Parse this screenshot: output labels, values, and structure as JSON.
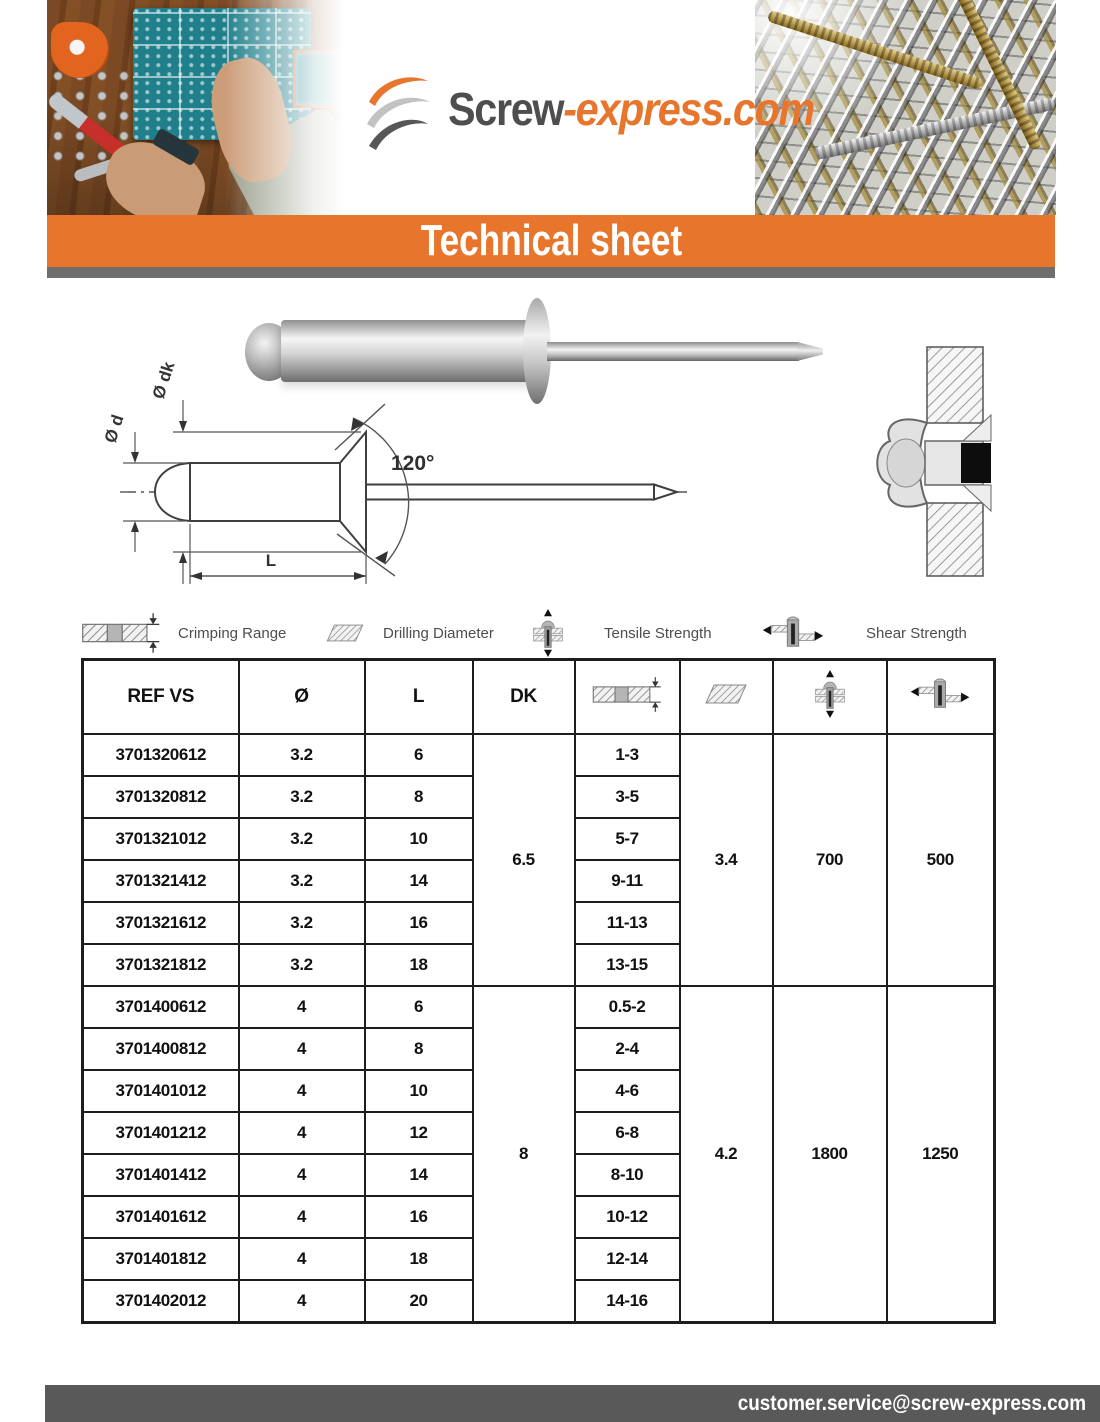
{
  "brand": {
    "name_dark": "Screw",
    "name_accent": "-express.com"
  },
  "banner": {
    "title": "Technical sheet"
  },
  "product_diagram": {
    "body_diameter_label": "Ø d",
    "head_diameter_label": "Ø dk",
    "angle_label": "120°",
    "length_label": "L"
  },
  "legend": {
    "items": [
      {
        "icon": "crimping-range-icon",
        "label": "Crimping Range"
      },
      {
        "icon": "drilling-diameter-icon",
        "label": "Drilling Diameter"
      },
      {
        "icon": "tensile-strength-icon",
        "label": "Tensile Strength"
      },
      {
        "icon": "shear-strength-icon",
        "label": "Shear Strength"
      }
    ]
  },
  "table": {
    "text_headers": [
      "REF VS",
      "Ø",
      "L",
      "DK"
    ],
    "icon_headers": [
      "crimping-range-icon",
      "drilling-diameter-icon",
      "tensile-strength-icon",
      "shear-strength-icon"
    ],
    "groups": [
      {
        "dk": "6.5",
        "drilling_diameter": "3.4",
        "tensile_strength": "700",
        "shear_strength": "500",
        "rows": [
          {
            "ref": "3701320612",
            "dia": "3.2",
            "length": "6",
            "crimping_range": "1-3"
          },
          {
            "ref": "3701320812",
            "dia": "3.2",
            "length": "8",
            "crimping_range": "3-5"
          },
          {
            "ref": "3701321012",
            "dia": "3.2",
            "length": "10",
            "crimping_range": "5-7"
          },
          {
            "ref": "3701321412",
            "dia": "3.2",
            "length": "14",
            "crimping_range": "9-11"
          },
          {
            "ref": "3701321612",
            "dia": "3.2",
            "length": "16",
            "crimping_range": "11-13"
          },
          {
            "ref": "3701321812",
            "dia": "3.2",
            "length": "18",
            "crimping_range": "13-15"
          }
        ]
      },
      {
        "dk": "8",
        "drilling_diameter": "4.2",
        "tensile_strength": "1800",
        "shear_strength": "1250",
        "rows": [
          {
            "ref": "3701400612",
            "dia": "4",
            "length": "6",
            "crimping_range": "0.5-2"
          },
          {
            "ref": "3701400812",
            "dia": "4",
            "length": "8",
            "crimping_range": "2-4"
          },
          {
            "ref": "3701401012",
            "dia": "4",
            "length": "10",
            "crimping_range": "4-6"
          },
          {
            "ref": "3701401212",
            "dia": "4",
            "length": "12",
            "crimping_range": "6-8"
          },
          {
            "ref": "3701401412",
            "dia": "4",
            "length": "14",
            "crimping_range": "8-10"
          },
          {
            "ref": "3701401612",
            "dia": "4",
            "length": "16",
            "crimping_range": "10-12"
          },
          {
            "ref": "3701401812",
            "dia": "4",
            "length": "18",
            "crimping_range": "12-14"
          },
          {
            "ref": "3701402012",
            "dia": "4",
            "length": "20",
            "crimping_range": "14-16"
          }
        ]
      }
    ]
  },
  "footer": {
    "email": "customer.service@screw-express.com"
  },
  "colors": {
    "accent_orange": "#E7752B",
    "footer_gray": "#595959",
    "banner_shadow_gray": "#6E6E6E"
  }
}
